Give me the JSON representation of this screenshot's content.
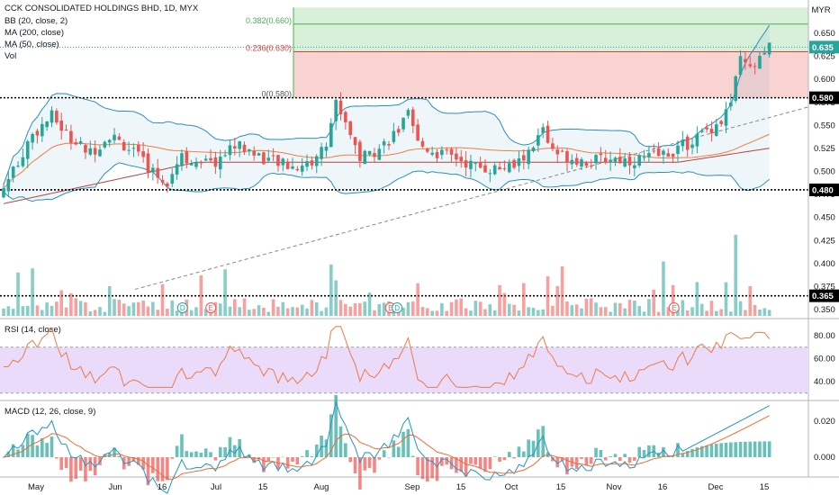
{
  "legend": {
    "title": "CCK CONSOLIDATED HOLDINGS BHD, 1D, MYX",
    "bb": "BB (20, close, 2)",
    "ma200": "MA (200, close)",
    "ma50": "MA (50, close)",
    "vol": "Vol",
    "rsi": "RSI (14, close)",
    "macd": "MACD (12, 26, close, 9)"
  },
  "currency": "MYR",
  "colors": {
    "up": "#26a69a",
    "down": "#ef5350",
    "bb": "#2b8fbd",
    "ma50": "#f57c40",
    "ma200": "#b2443d",
    "rsi": "#f07a46",
    "rsi_band": "#eadbfb",
    "macd": "#2196c7",
    "signal": "#f26a35",
    "fib_green": "#d8efd9",
    "fib_red": "#f9d2d2",
    "price_tag": "#26a69a",
    "level_tag": "#000000"
  },
  "fib_levels": [
    {
      "label": "0.382(0.660)",
      "price": 0.66
    },
    {
      "label": "0.236(0.630)",
      "price": 0.63
    },
    {
      "label": "0(0.580)",
      "price": 0.58
    }
  ],
  "price_tags": {
    "last": "0.635",
    "levels": [
      "0.580",
      "0.480",
      "0.365"
    ]
  },
  "events": [
    {
      "letter": "D",
      "month_index": 1.55
    },
    {
      "letter": "E",
      "month_index": 1.85
    },
    {
      "letter": "E",
      "month_index": 3.75
    },
    {
      "letter": "D",
      "month_index": 3.82
    },
    {
      "letter": "E",
      "month_index": 6.75
    }
  ],
  "chart_data": {
    "type": "candlestick",
    "title": "CCK CONSOLIDATED HOLDINGS BHD, 1D, MYX",
    "price_axis": {
      "ticks": [
        "0.650",
        "0.625",
        "0.600",
        "0.575",
        "0.550",
        "0.525",
        "0.500",
        "0.475",
        "0.450",
        "0.425",
        "0.400",
        "0.375",
        "0.350"
      ],
      "range": [
        0.34,
        0.678
      ]
    },
    "x_ticks": [
      "May",
      "Jun",
      "16",
      "Jul",
      "15",
      "Aug",
      "Sep",
      "15",
      "Oct",
      "15",
      "Nov",
      "16",
      "Dec",
      "15"
    ],
    "ohlc_monthly_summary": [
      {
        "month": "May",
        "open": 0.48,
        "high": 0.56,
        "low": 0.475,
        "close": 0.52
      },
      {
        "month": "Jun",
        "open": 0.52,
        "high": 0.54,
        "low": 0.48,
        "close": 0.505
      },
      {
        "month": "Jul",
        "open": 0.505,
        "high": 0.535,
        "low": 0.5,
        "close": 0.51
      },
      {
        "month": "Aug",
        "open": 0.51,
        "high": 0.585,
        "low": 0.505,
        "close": 0.525
      },
      {
        "month": "Sep",
        "open": 0.525,
        "high": 0.56,
        "low": 0.505,
        "close": 0.51
      },
      {
        "month": "Oct",
        "open": 0.51,
        "high": 0.57,
        "low": 0.5,
        "close": 0.515
      },
      {
        "month": "Nov",
        "open": 0.515,
        "high": 0.545,
        "low": 0.505,
        "close": 0.52
      },
      {
        "month": "Dec",
        "open": 0.52,
        "high": 0.655,
        "low": 0.515,
        "close": 0.635
      }
    ],
    "last_close": 0.635,
    "rsi": {
      "ticks": [
        "80.00",
        "60.00",
        "40.00"
      ],
      "band": [
        30,
        70
      ]
    },
    "macd": {
      "ticks": [
        "0.020",
        "0.000"
      ]
    }
  }
}
